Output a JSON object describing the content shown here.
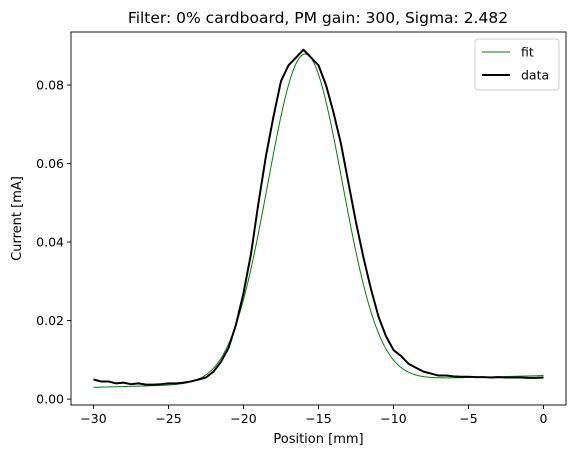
{
  "chart_data": {
    "type": "line",
    "title": "Filter: 0% cardboard, PM gain: 300, Sigma: 2.482",
    "xlabel": "Position [mm]",
    "ylabel": "Current [mA]",
    "xlim": [
      -31.5,
      1.5
    ],
    "ylim": [
      -0.0015,
      0.0935
    ],
    "x_ticks": [
      -30,
      -25,
      -20,
      -15,
      -10,
      -5,
      0
    ],
    "x_tick_labels": [
      "−30",
      "−25",
      "−20",
      "−15",
      "−10",
      "−5",
      "0"
    ],
    "y_ticks": [
      0.0,
      0.02,
      0.04,
      0.06,
      0.08
    ],
    "y_tick_labels": [
      "0.00",
      "0.02",
      "0.04",
      "0.06",
      "0.08"
    ],
    "grid": false,
    "legend_position": "top-right",
    "series": [
      {
        "name": "fit",
        "color": "#008000",
        "style": "thin",
        "model": "gaussian",
        "center": -15.9,
        "sigma": 2.482,
        "amplitude": 0.0835,
        "baseline_start": 0.003,
        "baseline_end": 0.006,
        "x_range": [
          -30,
          0
        ]
      },
      {
        "name": "data",
        "color": "#000000",
        "style": "thick",
        "x": [
          -30,
          -29.5,
          -29,
          -28.5,
          -28,
          -27.5,
          -27,
          -26.5,
          -26,
          -25.5,
          -25,
          -24.5,
          -24,
          -23.5,
          -23,
          -22.5,
          -22,
          -21.5,
          -21,
          -20.5,
          -20,
          -19.5,
          -19,
          -18.5,
          -18,
          -17.5,
          -17,
          -16.5,
          -16,
          -15.5,
          -15,
          -14.5,
          -14,
          -13.5,
          -13,
          -12.5,
          -12,
          -11.5,
          -11,
          -10.5,
          -10,
          -9.5,
          -9,
          -8.5,
          -8,
          -7.5,
          -7,
          -6.5,
          -6,
          -5.5,
          -5,
          -4.5,
          -4,
          -3.5,
          -3,
          -2.5,
          -2,
          -1.5,
          -1,
          -0.5,
          0
        ],
        "values": [
          0.005,
          0.0045,
          0.0045,
          0.004,
          0.0042,
          0.0038,
          0.004,
          0.0037,
          0.0037,
          0.0038,
          0.004,
          0.004,
          0.0042,
          0.0045,
          0.005,
          0.0055,
          0.007,
          0.0095,
          0.013,
          0.019,
          0.027,
          0.037,
          0.05,
          0.062,
          0.072,
          0.081,
          0.085,
          0.087,
          0.089,
          0.087,
          0.085,
          0.08,
          0.073,
          0.065,
          0.055,
          0.045,
          0.036,
          0.028,
          0.021,
          0.016,
          0.0125,
          0.011,
          0.009,
          0.008,
          0.007,
          0.0065,
          0.006,
          0.006,
          0.0058,
          0.0057,
          0.0057,
          0.0056,
          0.0056,
          0.0055,
          0.0056,
          0.0055,
          0.0055,
          0.0055,
          0.0054,
          0.0054,
          0.0055
        ]
      }
    ]
  }
}
